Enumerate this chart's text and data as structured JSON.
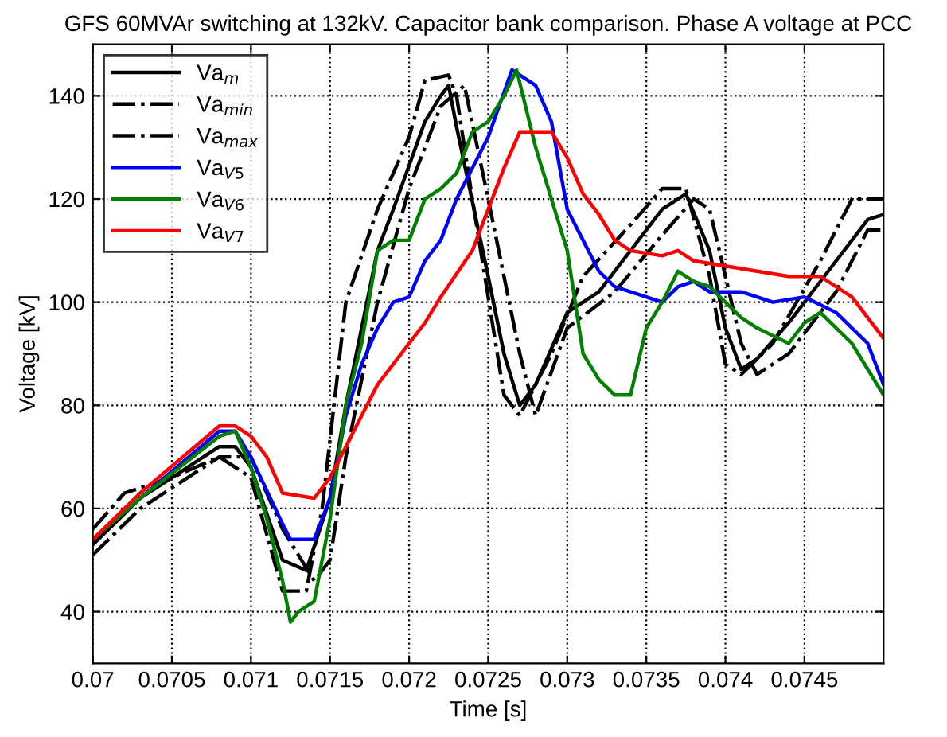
{
  "chart_data": {
    "type": "line",
    "title": "GFS 60MVAr switching at 132kV. Capacitor bank comparison. Phase A voltage at PCC",
    "xlabel": "Time [s]",
    "ylabel": "Voltage [kV]",
    "xlim": [
      0.07,
      0.075
    ],
    "xticks": [
      0.07,
      0.0705,
      0.071,
      0.0715,
      0.072,
      0.0725,
      0.073,
      0.0735,
      0.074,
      0.0745
    ],
    "ylim": [
      30,
      150
    ],
    "yticks": [
      40,
      60,
      80,
      100,
      120,
      140
    ],
    "grid": true,
    "legend": "top left",
    "series": [
      {
        "name": "Va$_{m}$",
        "color": "#000000",
        "line_style": "solid",
        "x": [
          0.07,
          0.0703,
          0.0705,
          0.0708,
          0.0709,
          0.071,
          0.0712,
          0.07135,
          0.0715,
          0.0716,
          0.0718,
          0.0719,
          0.0721,
          0.0722,
          0.07225,
          0.0723,
          0.0725,
          0.0726,
          0.0727,
          0.0728,
          0.073,
          0.0731,
          0.0732,
          0.0734,
          0.0736,
          0.07375,
          0.0739,
          0.074,
          0.0741,
          0.0742,
          0.0744,
          0.0746,
          0.0748,
          0.0749,
          0.075
        ],
        "values": [
          53,
          62,
          66,
          72,
          72,
          68,
          50,
          48,
          62,
          80,
          110,
          118,
          135,
          140,
          142,
          134,
          105,
          90,
          80,
          84,
          98,
          100,
          102,
          110,
          118,
          121,
          110,
          95,
          87,
          89,
          96,
          104,
          112,
          116,
          117
        ]
      },
      {
        "name": "Va$_{min}$",
        "color": "#000000",
        "line_style": "dashdot",
        "x": [
          0.07,
          0.0703,
          0.0705,
          0.0708,
          0.071,
          0.0712,
          0.0714,
          0.0715,
          0.0716,
          0.0718,
          0.072,
          0.0722,
          0.07235,
          0.0725,
          0.0727,
          0.0728,
          0.073,
          0.0733,
          0.0736,
          0.0738,
          0.0739,
          0.0741,
          0.0742,
          0.0744,
          0.0747,
          0.0749,
          0.075
        ],
        "values": [
          51,
          60,
          64,
          70,
          70,
          56,
          46,
          50,
          70,
          100,
          122,
          138,
          142,
          120,
          90,
          78,
          95,
          102,
          113,
          120,
          118,
          92,
          86,
          90,
          102,
          114,
          114
        ]
      },
      {
        "name": "Va$_{max}$",
        "color": "#000000",
        "line_style": "dashdot",
        "x": [
          0.07,
          0.0702,
          0.0705,
          0.0708,
          0.071,
          0.0712,
          0.07135,
          0.07145,
          0.0716,
          0.0718,
          0.072,
          0.0721,
          0.07225,
          0.0723,
          0.0724,
          0.0726,
          0.0727,
          0.0729,
          0.0731,
          0.0734,
          0.0736,
          0.07375,
          0.0739,
          0.074,
          0.0741,
          0.0743,
          0.0746,
          0.0748,
          0.075
        ],
        "values": [
          56,
          63,
          66,
          70,
          66,
          44,
          44,
          60,
          100,
          118,
          132,
          143,
          144,
          140,
          120,
          82,
          78,
          90,
          105,
          115,
          122,
          122,
          105,
          88,
          86,
          92,
          108,
          120,
          120
        ]
      },
      {
        "name": "Va$_{V5}$",
        "color": "#0000ff",
        "line_style": "solid",
        "x": [
          0.0703,
          0.0708,
          0.0709,
          0.071,
          0.0712,
          0.07125,
          0.0714,
          0.0715,
          0.0716,
          0.0717,
          0.0718,
          0.0719,
          0.072,
          0.0721,
          0.0722,
          0.0723,
          0.0725,
          0.07265,
          0.0728,
          0.0729,
          0.073,
          0.0731,
          0.0732,
          0.0733,
          0.0734,
          0.0735,
          0.0736,
          0.0737,
          0.0738,
          0.0739,
          0.0741,
          0.0743,
          0.0745,
          0.0747,
          0.0749,
          0.075
        ],
        "values": [
          62,
          75,
          75,
          70,
          57,
          54,
          54,
          62,
          78,
          88,
          95,
          100,
          101,
          108,
          112,
          120,
          132,
          145,
          142,
          135,
          118,
          112,
          106,
          103,
          102,
          101,
          100,
          103,
          104,
          102,
          102,
          100,
          101,
          98,
          92,
          84
        ]
      },
      {
        "name": "Va$_{V6}$",
        "color": "#008000",
        "line_style": "solid",
        "x": [
          0.07,
          0.0703,
          0.0708,
          0.0709,
          0.071,
          0.0711,
          0.0712,
          0.07125,
          0.0713,
          0.0714,
          0.0715,
          0.0716,
          0.0717,
          0.0718,
          0.0719,
          0.072,
          0.0721,
          0.0722,
          0.0723,
          0.0724,
          0.0725,
          0.0726,
          0.07268,
          0.0728,
          0.0729,
          0.073,
          0.0731,
          0.0732,
          0.0733,
          0.0734,
          0.0735,
          0.0736,
          0.0737,
          0.0738,
          0.0739,
          0.074,
          0.0741,
          0.0742,
          0.0744,
          0.0745,
          0.0746,
          0.0748,
          0.075
        ],
        "values": [
          54,
          62,
          74,
          75,
          68,
          58,
          46,
          38,
          40,
          42,
          58,
          80,
          92,
          110,
          112,
          112,
          120,
          122,
          125,
          133,
          135,
          140,
          145,
          130,
          120,
          110,
          90,
          85,
          82,
          82,
          95,
          100,
          106,
          104,
          103,
          100,
          97,
          95,
          92,
          96,
          98,
          92,
          82
        ]
      },
      {
        "name": "Va$_{V7}$",
        "color": "#ff0000",
        "line_style": "solid",
        "x": [
          0.07,
          0.0703,
          0.0708,
          0.0709,
          0.071,
          0.0711,
          0.0712,
          0.0714,
          0.0715,
          0.0716,
          0.0717,
          0.0718,
          0.0719,
          0.0721,
          0.0722,
          0.0724,
          0.0725,
          0.0726,
          0.0727,
          0.0729,
          0.073,
          0.0731,
          0.0732,
          0.0733,
          0.0734,
          0.0736,
          0.0737,
          0.0738,
          0.074,
          0.0742,
          0.0744,
          0.0746,
          0.0748,
          0.075
        ],
        "values": [
          54,
          63,
          76,
          76,
          74,
          70,
          63,
          62,
          66,
          72,
          78,
          84,
          88,
          96,
          101,
          110,
          118,
          126,
          133,
          133,
          128,
          121,
          117,
          112,
          110,
          109,
          110,
          108,
          107,
          106,
          105,
          105,
          101,
          93
        ]
      }
    ]
  }
}
